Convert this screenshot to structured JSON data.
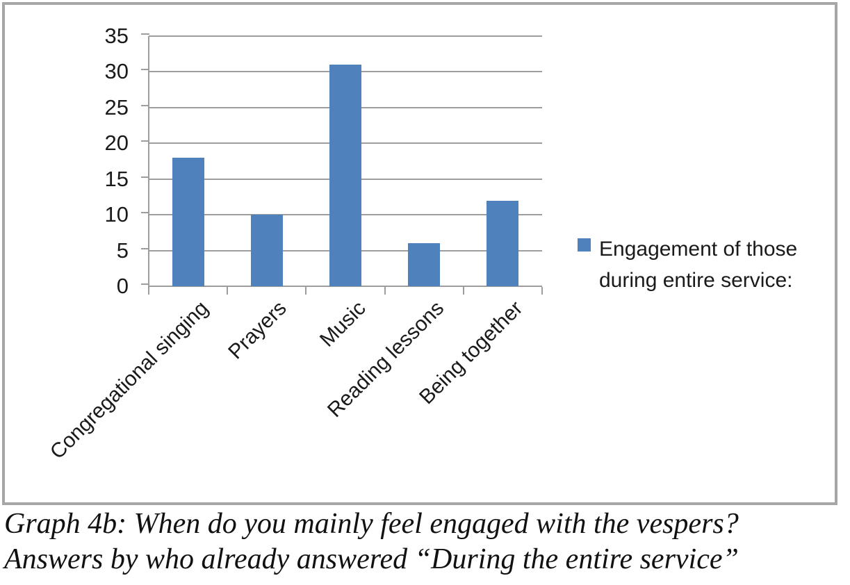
{
  "chart_data": {
    "type": "bar",
    "categories": [
      "Congregational singing",
      "Prayers",
      "Music",
      "Reading lessons",
      "Being together"
    ],
    "values": [
      18,
      10,
      31,
      6,
      12
    ],
    "series_name": "Engagement of those during entire service:",
    "title": "",
    "xlabel": "",
    "ylabel": "",
    "ylim": [
      0,
      35
    ],
    "ytick_step": 5,
    "yticks": [
      0,
      5,
      10,
      15,
      20,
      25,
      30,
      35
    ],
    "grid": true,
    "legend_position": "right",
    "bar_color": "#4f81bd",
    "gridline_color": "#9d9d9d",
    "frame_border_color": "#a6a6a6",
    "category_label_rotation_deg": -45
  },
  "legend": {
    "label": "Engagement of those\nduring entire service:"
  },
  "caption": {
    "text": "Graph 4b: When do you mainly feel engaged with the vespers?\nAnswers by who already answered “During the entire service”"
  }
}
